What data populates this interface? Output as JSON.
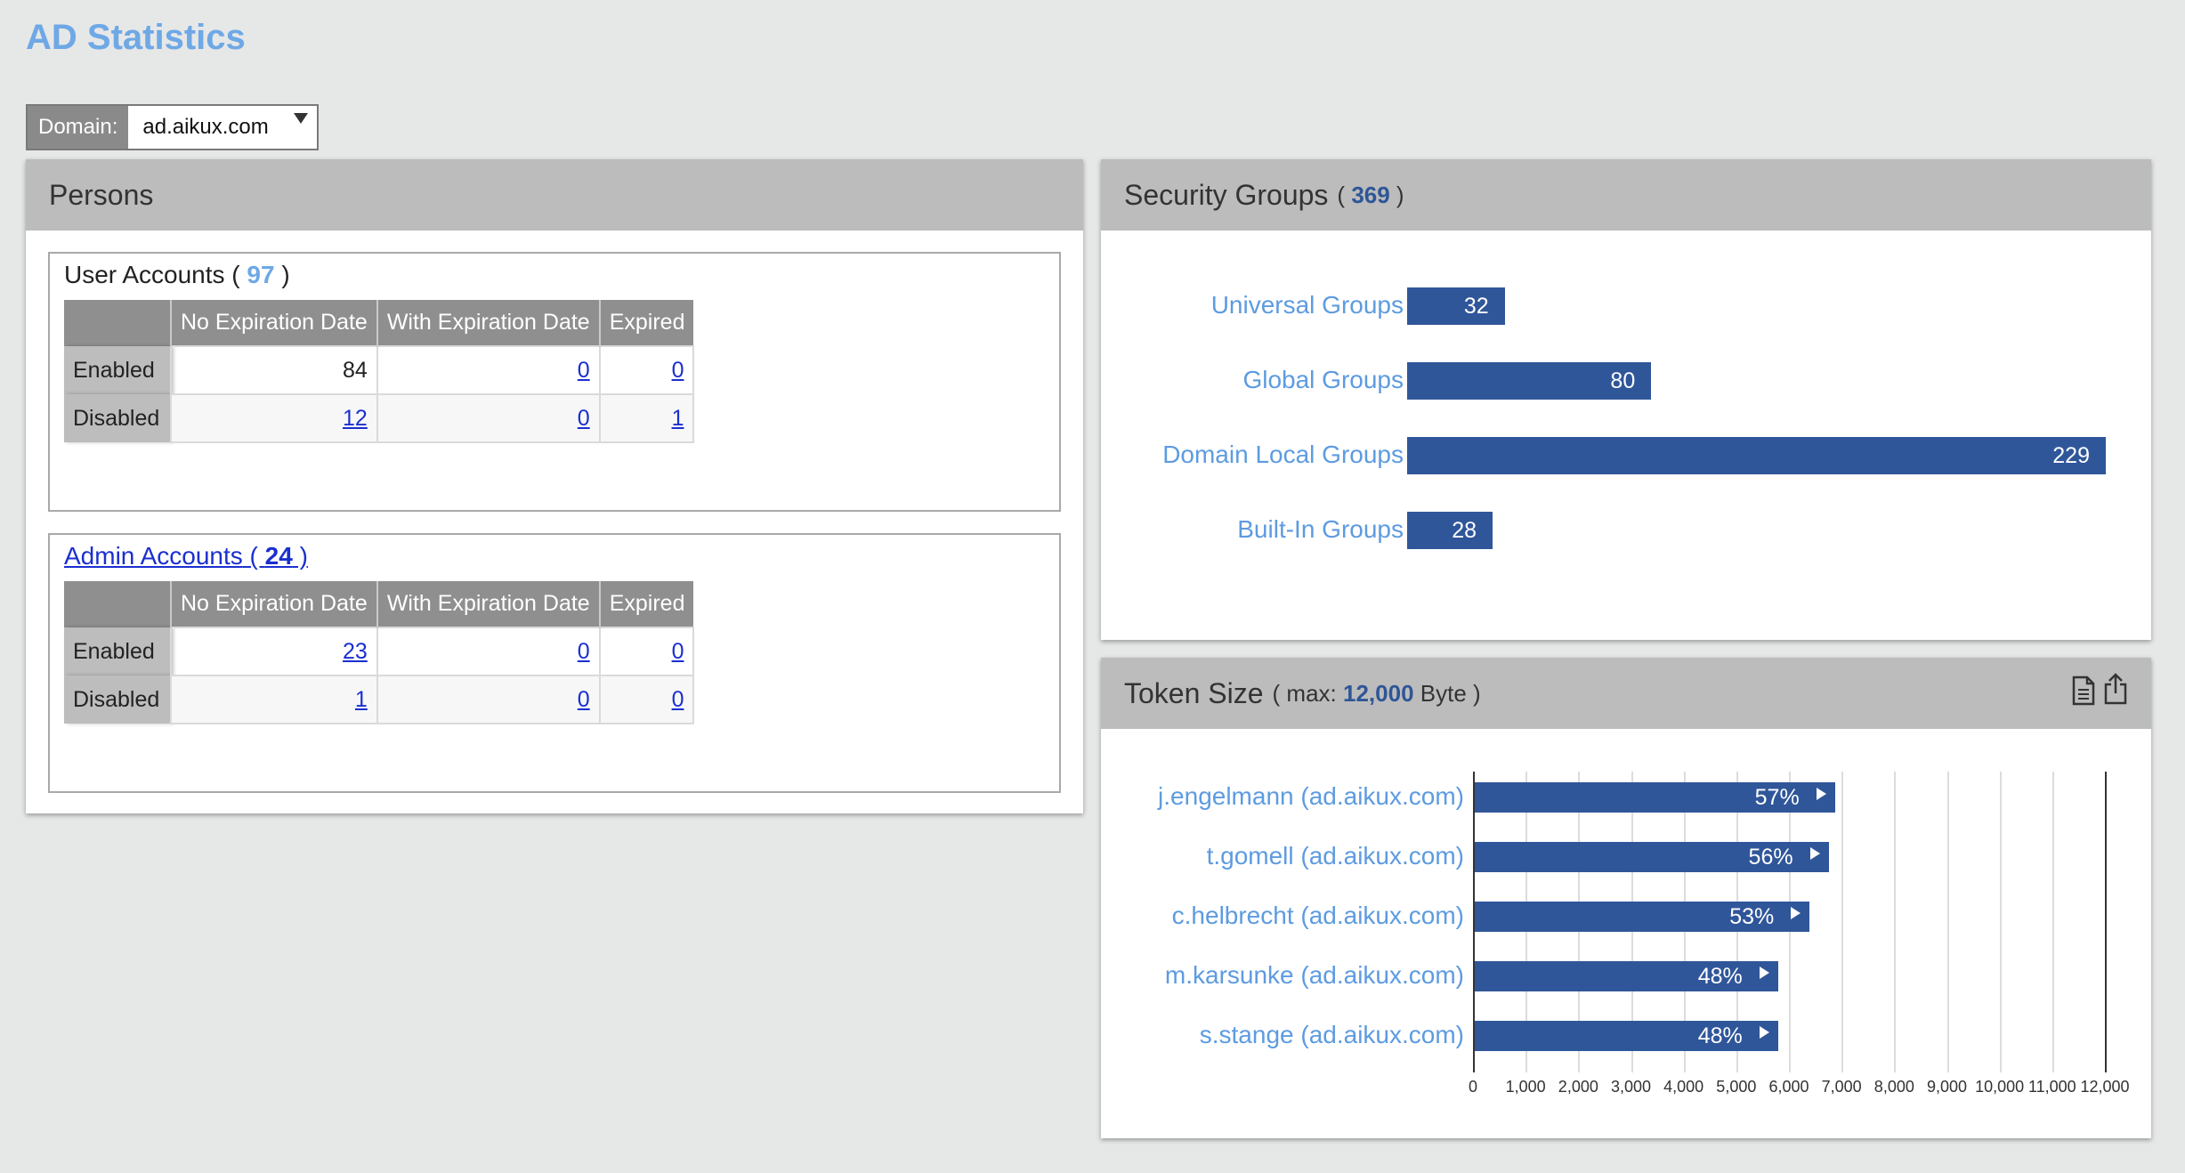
{
  "page": {
    "title": "AD Statistics"
  },
  "domain": {
    "label": "Domain:",
    "value": "ad.aikux.com"
  },
  "persons": {
    "title": "Persons",
    "user_accounts": {
      "label": "User Accounts",
      "count_text": "( 97 )",
      "open": "( ",
      "count": "97",
      "close": " )",
      "columns": [
        "No Expiration Date",
        "With Expiration Date",
        "Expired"
      ],
      "rows": [
        {
          "label": "Enabled",
          "values": [
            "84",
            "0",
            "0"
          ]
        },
        {
          "label": "Disabled",
          "values": [
            "12",
            "0",
            "1"
          ]
        }
      ]
    },
    "admin_accounts": {
      "label": "Admin Accounts",
      "count": "24",
      "columns": [
        "No Expiration Date",
        "With Expiration Date",
        "Expired"
      ],
      "rows": [
        {
          "label": "Enabled",
          "values": [
            "23",
            "0",
            "0"
          ]
        },
        {
          "label": "Disabled",
          "values": [
            "1",
            "0",
            "0"
          ]
        }
      ]
    }
  },
  "security_groups": {
    "title": "Security Groups",
    "total": "369",
    "items": [
      {
        "label": "Universal Groups",
        "value": "32"
      },
      {
        "label": "Global Groups",
        "value": "80"
      },
      {
        "label": "Domain Local Groups",
        "value": "229"
      },
      {
        "label": "Built-In Groups",
        "value": "28"
      }
    ]
  },
  "token_size": {
    "title": "Token Size",
    "max_label": "max:",
    "max_value": "12,000",
    "unit": "Byte",
    "icons": [
      "document-icon",
      "export-icon"
    ]
  },
  "chart_data": {
    "type": "bar",
    "orientation": "horizontal",
    "categories": [
      "j.engelmann (ad.aikux.com)",
      "t.gomell (ad.aikux.com)",
      "c.helbrecht (ad.aikux.com)",
      "m.karsunke (ad.aikux.com)",
      "s.stange (ad.aikux.com)"
    ],
    "values": [
      6840,
      6720,
      6360,
      5760,
      5760
    ],
    "data_labels": [
      "57%",
      "56%",
      "53%",
      "48%",
      "48%"
    ],
    "xlim": [
      0,
      12000
    ],
    "x_ticks": [
      "0",
      "1,000",
      "2,000",
      "3,000",
      "4,000",
      "5,000",
      "6,000",
      "7,000",
      "8,000",
      "9,000",
      "10,000",
      "11,000",
      "12,000"
    ],
    "grid": true,
    "bar_color": "#30569a"
  },
  "colors": {
    "accent": "#6ea8e6",
    "bar": "#30569a",
    "link": "#1a2fcf"
  }
}
